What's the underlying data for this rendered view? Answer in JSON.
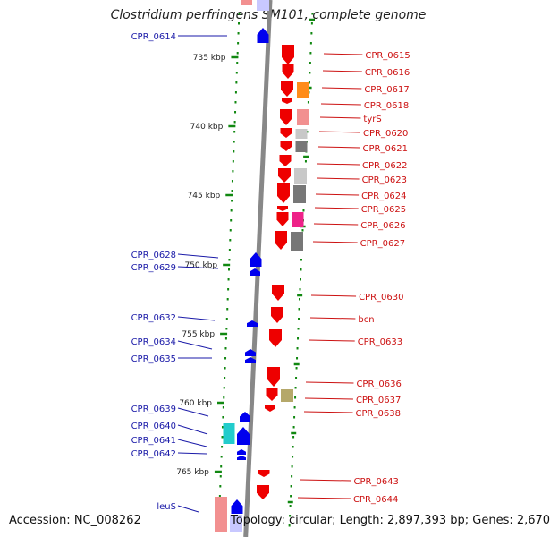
{
  "title": "Clostridium perfringens SM101, complete genome",
  "accession": "Accession: NC_008262",
  "topology": "Topology: circular; Length: 2,897,393 bp; Genes: 2,670",
  "colors": {
    "backbone": "#888888",
    "left_label": "#1a1aa8",
    "right_label": "#cc1111",
    "tick": "#118811"
  },
  "ticks": [
    "735 kbp",
    "740 kbp",
    "745 kbp",
    "750 kbp",
    "755 kbp",
    "760 kbp",
    "765 kbp"
  ],
  "left_labels": [
    "CPR_0614",
    "CPR_0628",
    "CPR_0629",
    "CPR_0632",
    "CPR_0634",
    "CPR_0635",
    "CPR_0639",
    "CPR_0640",
    "CPR_0641",
    "CPR_0642",
    "leuS"
  ],
  "right_labels": [
    "CPR_0615",
    "CPR_0616",
    "CPR_0617",
    "CPR_0618",
    "tyrS",
    "CPR_0620",
    "CPR_0621",
    "CPR_0622",
    "CPR_0623",
    "CPR_0624",
    "CPR_0625",
    "CPR_0626",
    "CPR_0627",
    "CPR_0630",
    "bcn",
    "CPR_0633",
    "CPR_0636",
    "CPR_0637",
    "CPR_0638",
    "CPR_0643",
    "CPR_0644"
  ]
}
